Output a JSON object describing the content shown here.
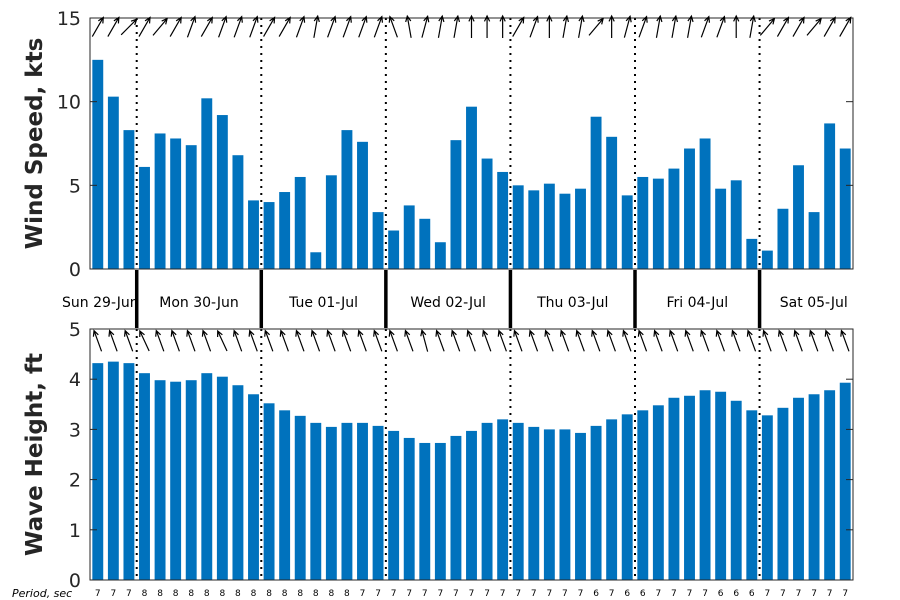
{
  "colors": {
    "bar": "#0072bd",
    "axis": "#262626",
    "arrow": "#000000"
  },
  "chart_data": [
    {
      "type": "bar",
      "ylabel": "Wind Speed, kts",
      "ylim": [
        0,
        15
      ],
      "yticks": [
        0,
        5,
        10,
        15
      ],
      "values": [
        12.5,
        10.3,
        8.3,
        6.1,
        8.1,
        7.8,
        7.4,
        10.2,
        9.2,
        6.8,
        4.1,
        4.0,
        4.6,
        5.5,
        1.0,
        5.6,
        8.3,
        7.6,
        3.4,
        2.3,
        3.8,
        3.0,
        1.6,
        7.7,
        9.7,
        6.6,
        5.8,
        5.0,
        4.7,
        5.1,
        4.5,
        4.8,
        9.1,
        7.9,
        4.4,
        5.5,
        5.4,
        6.0,
        7.2,
        7.8,
        4.8,
        5.3,
        1.8,
        1.1,
        3.6,
        6.2,
        3.4,
        8.7,
        7.2
      ],
      "direction_deg": [
        120,
        120,
        135,
        120,
        130,
        120,
        110,
        120,
        110,
        110,
        110,
        120,
        120,
        110,
        100,
        110,
        110,
        110,
        110,
        70,
        80,
        105,
        100,
        100,
        90,
        90,
        90,
        120,
        110,
        90,
        100,
        100,
        130,
        90,
        105,
        110,
        100,
        100,
        100,
        110,
        110,
        90,
        100,
        130,
        120,
        120,
        130,
        120,
        120
      ]
    },
    {
      "type": "bar",
      "ylabel": "Wave Height, ft",
      "ylim": [
        0,
        5
      ],
      "yticks": [
        0,
        1,
        2,
        3,
        4,
        5
      ],
      "values": [
        4.32,
        4.35,
        4.32,
        4.12,
        3.98,
        3.95,
        3.98,
        4.12,
        4.05,
        3.88,
        3.7,
        3.52,
        3.38,
        3.27,
        3.13,
        3.05,
        3.13,
        3.13,
        3.07,
        2.97,
        2.83,
        2.73,
        2.73,
        2.87,
        2.97,
        3.13,
        3.2,
        3.13,
        3.05,
        3.0,
        3.0,
        2.93,
        3.07,
        3.2,
        3.3,
        3.38,
        3.48,
        3.63,
        3.67,
        3.78,
        3.75,
        3.57,
        3.38,
        3.28,
        3.43,
        3.63,
        3.7,
        3.78,
        3.93
      ],
      "direction_deg": [
        70,
        70,
        70,
        65,
        70,
        70,
        70,
        70,
        65,
        70,
        70,
        70,
        70,
        70,
        70,
        70,
        70,
        70,
        70,
        70,
        70,
        75,
        70,
        70,
        70,
        70,
        70,
        70,
        70,
        70,
        70,
        70,
        70,
        70,
        70,
        70,
        70,
        70,
        70,
        70,
        70,
        70,
        70,
        70,
        70,
        70,
        70,
        70,
        70
      ]
    }
  ],
  "days": [
    "Sun 29-Jun",
    "Mon 30-Jun",
    "Tue 01-Jul",
    "Wed 02-Jul",
    "Thu 03-Jul",
    "Fri 04-Jul",
    "Sat 05-Jul"
  ],
  "period_title": "Period, sec",
  "periods": [
    7,
    7,
    7,
    8,
    8,
    8,
    8,
    8,
    8,
    8,
    8,
    8,
    8,
    8,
    8,
    8,
    8,
    7,
    7,
    7,
    7,
    7,
    7,
    7,
    7,
    7,
    7,
    7,
    7,
    7,
    7,
    7,
    6,
    7,
    6,
    6,
    7,
    7,
    7,
    7,
    6,
    6,
    6,
    7,
    7,
    7,
    7,
    7,
    7
  ]
}
